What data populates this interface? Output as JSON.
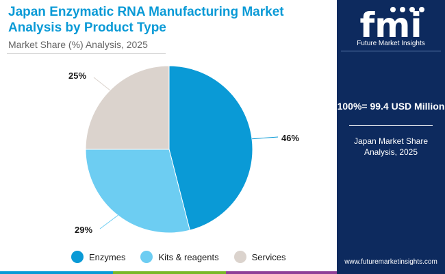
{
  "header": {
    "title": "Japan Enzymatic RNA Manufacturing Market Analysis by Product Type",
    "subtitle": "Market Share (%) Analysis, 2025"
  },
  "chart_data": {
    "type": "pie",
    "categories": [
      "Enzymes",
      "Kits & reagents",
      "Services"
    ],
    "values": [
      46,
      29,
      25
    ],
    "labels": [
      "46%",
      "29%",
      "25%"
    ],
    "colors": [
      "#0a9ad6",
      "#6dcdf2",
      "#dbd3cd"
    ],
    "legend_position": "bottom"
  },
  "panel": {
    "logo_text": "Future Market Insights",
    "total": "100%= 99.4 USD Million",
    "region": "Japan Market Share Analysis, 2025",
    "website": "www.futuremarketinsights.com"
  },
  "bottom_bar_colors": [
    "#0a9ad6",
    "#79b829",
    "#8e3f97",
    "#0d2a5e"
  ]
}
